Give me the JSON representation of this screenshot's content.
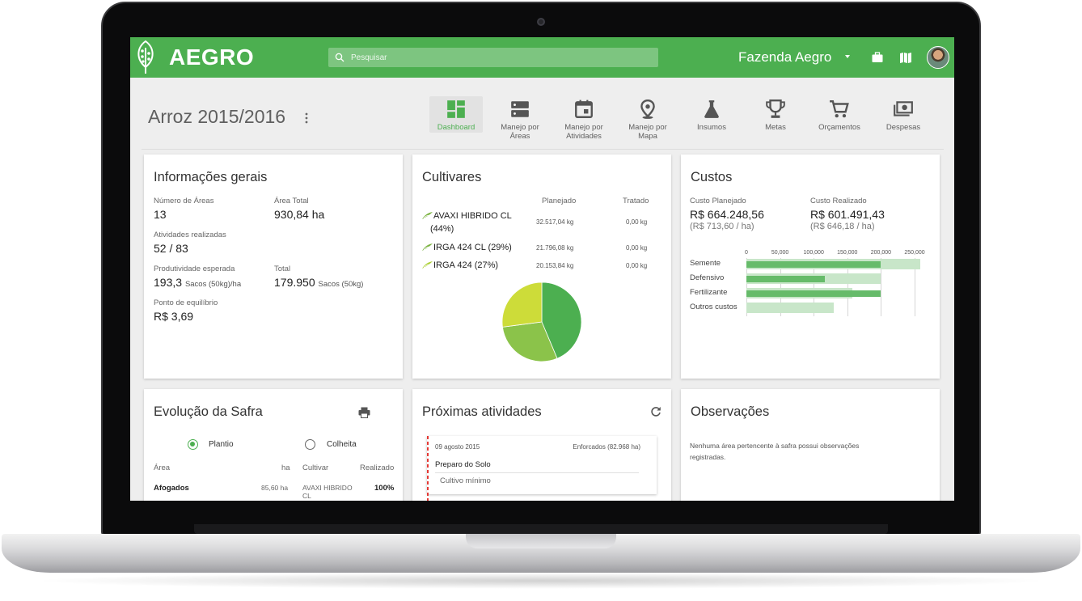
{
  "header": {
    "logo": "AEGRO",
    "search_placeholder": "Pesquisar",
    "farm_name": "Fazenda Aegro",
    "icons": [
      "briefcase-icon",
      "map-book-icon"
    ],
    "avatar": "user-avatar"
  },
  "crop": {
    "title": "Arroz 2015/2016"
  },
  "nav": [
    {
      "label": "Dashboard",
      "icon": "dashboard-icon",
      "active": true
    },
    {
      "label": "Manejo por Áreas",
      "icon": "areas-icon"
    },
    {
      "label": "Manejo por Atividades",
      "icon": "calendar-icon"
    },
    {
      "label": "Manejo por Mapa",
      "icon": "map-pin-icon"
    },
    {
      "label": "Insumos",
      "icon": "flask-icon"
    },
    {
      "label": "Metas",
      "icon": "trophy-icon"
    },
    {
      "label": "Orçamentos",
      "icon": "cart-icon"
    },
    {
      "label": "Despesas",
      "icon": "money-icon"
    }
  ],
  "info": {
    "title": "Informações gerais",
    "areas_label": "Número de Áreas",
    "areas_value": "13",
    "area_total_label": "Área Total",
    "area_total_value": "930,84 ha",
    "activities_label": "Atividades realizadas",
    "activities_value": "52 / 83",
    "productivity_label": "Produtividade esperada",
    "productivity_value": "193,3",
    "productivity_unit": "Sacos (50kg)/ha",
    "total_label": "Total",
    "total_value": "179.950",
    "total_unit": "Sacos (50kg)",
    "breakeven_label": "Ponto de equilíbrio",
    "breakeven_value": "R$ 3,69"
  },
  "cultivars": {
    "title": "Cultivares",
    "col_planned": "Planejado",
    "col_treated": "Tratado",
    "rows": [
      {
        "name_line1": "AVAXI HIBRIDO CL",
        "name_line2": "(44%)",
        "planned": "32.517,04 kg",
        "treated": "0,00 kg"
      },
      {
        "name": "IRGA 424 CL (29%)",
        "planned": "21.796,08 kg",
        "treated": "0,00 kg"
      },
      {
        "name": "IRGA 424 (27%)",
        "planned": "20.153,84 kg",
        "treated": "0,00 kg"
      }
    ],
    "pie_colors": [
      "#4caf50",
      "#8bc34a",
      "#cddc39"
    ]
  },
  "costs": {
    "title": "Custos",
    "planned_label": "Custo Planejado",
    "planned_value": "R$ 664.248,56",
    "planned_per_ha": "(R$ 713,60 / ha)",
    "real_label": "Custo Realizado",
    "real_value": "R$ 601.491,43",
    "real_per_ha": "(R$ 646,18 / ha)",
    "ticks": [
      "0",
      "50,000",
      "100,000",
      "150,000",
      "200,000",
      "250,000"
    ]
  },
  "chart_data": {
    "type": "bar",
    "orientation": "horizontal",
    "categories": [
      "Semente",
      "Defensivo",
      "Fertilizante",
      "Outros custos"
    ],
    "series": [
      {
        "values": [
          258000,
          200000,
          157000,
          130000
        ],
        "color": "#c8e6c9"
      },
      {
        "values": [
          200000,
          117000,
          200000,
          0
        ],
        "color": "#66bb6a"
      }
    ],
    "xlim": [
      0,
      250000
    ],
    "grid": true
  },
  "evolution": {
    "title": "Evolução da Safra",
    "radio_planting": "Plantio",
    "radio_harvest": "Colheita",
    "col_area": "Área",
    "col_ha": "ha",
    "col_cultivar": "Cultivar",
    "col_done": "Realizado",
    "row_area": "Afogados",
    "row_ha": "85,60 ha",
    "row_cultivar_1": "AVAXI HIBRIDO",
    "row_cultivar_2": "CL",
    "row_done": "100%"
  },
  "activities": {
    "title": "Próximas atividades",
    "date": "09 agosto 2015",
    "area": "Enforcados (82.968 ha)",
    "activity": "Preparo do Solo",
    "detail": "Cultivo mínimo"
  },
  "observations": {
    "title": "Observações",
    "text_line1": "Nenhuma área pertencente à safra possui observações",
    "text_line2": "registradas."
  }
}
